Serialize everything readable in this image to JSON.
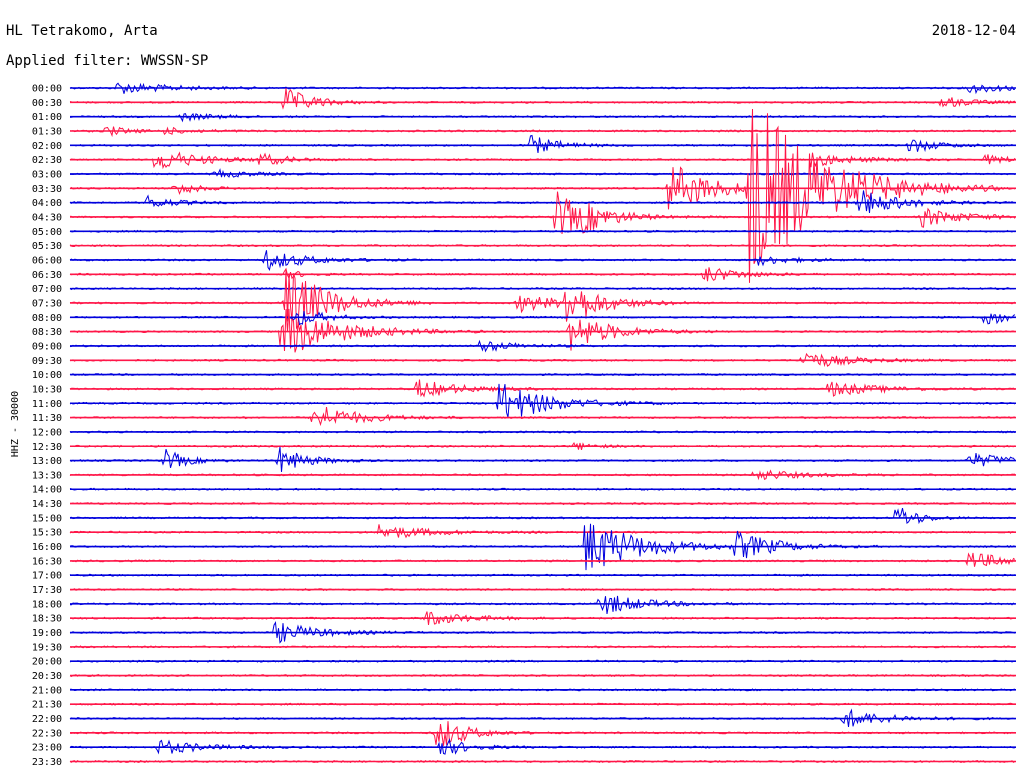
{
  "header": {
    "station": "HL Tetrakomo, Arta",
    "date": "2018-12-04",
    "filter": "Applied filter: WWSSN-SP"
  },
  "chart_data": {
    "type": "line",
    "title": "HL Tetrakomo, Arta",
    "ylabel": "HHZ - 30000",
    "trace_colors": [
      "#0000dd",
      "#ff1648"
    ],
    "hours": [
      "00:00",
      "00:30",
      "01:00",
      "01:30",
      "02:00",
      "02:30",
      "03:00",
      "03:30",
      "04:00",
      "04:30",
      "05:00",
      "05:30",
      "06:00",
      "06:30",
      "07:00",
      "07:30",
      "08:00",
      "08:30",
      "09:00",
      "09:30",
      "10:00",
      "10:30",
      "11:00",
      "11:30",
      "12:00",
      "12:30",
      "13:00",
      "13:30",
      "14:00",
      "14:30",
      "15:00",
      "15:30",
      "16:00",
      "16:30",
      "17:00",
      "17:30",
      "18:00",
      "18:30",
      "19:00",
      "19:30",
      "20:00",
      "20:30",
      "21:00",
      "21:30",
      "22:00",
      "22:30",
      "23:00",
      "23:30"
    ],
    "x_range_minutes": [
      0,
      30
    ],
    "events": [
      {
        "row": 0,
        "t": 1.5,
        "amp": 6,
        "dur": 1.5
      },
      {
        "row": 0,
        "t": 28.5,
        "amp": 5,
        "dur": 1.2
      },
      {
        "row": 1,
        "t": 6.8,
        "amp": 15,
        "dur": 0.8
      },
      {
        "row": 1,
        "t": 27.6,
        "amp": 7,
        "dur": 0.8
      },
      {
        "row": 2,
        "t": 3.5,
        "amp": 4,
        "dur": 1.0
      },
      {
        "row": 3,
        "t": 1.1,
        "amp": 6,
        "dur": 0.6
      },
      {
        "row": 3,
        "t": 3.0,
        "amp": 3,
        "dur": 1.0
      },
      {
        "row": 4,
        "t": 14.6,
        "amp": 10,
        "dur": 0.8
      },
      {
        "row": 4,
        "t": 26.6,
        "amp": 8,
        "dur": 0.8
      },
      {
        "row": 5,
        "t": 2.7,
        "amp": 12,
        "dur": 1.2
      },
      {
        "row": 5,
        "t": 6.0,
        "amp": 6,
        "dur": 0.8
      },
      {
        "row": 5,
        "t": 23.5,
        "amp": 7,
        "dur": 1.2
      },
      {
        "row": 5,
        "t": 29.0,
        "amp": 5,
        "dur": 0.8
      },
      {
        "row": 6,
        "t": 4.6,
        "amp": 4,
        "dur": 1.0
      },
      {
        "row": 7,
        "t": 3.3,
        "amp": 8,
        "dur": 0.6
      },
      {
        "row": 7,
        "t": 19.0,
        "amp": 28,
        "dur": 1.2
      },
      {
        "row": 7,
        "t": 21.5,
        "amp": 100,
        "dur": 2.0
      },
      {
        "row": 8,
        "t": 2.4,
        "amp": 7,
        "dur": 0.8
      },
      {
        "row": 8,
        "t": 25.0,
        "amp": 14,
        "dur": 1.2
      },
      {
        "row": 9,
        "t": 15.4,
        "amp": 28,
        "dur": 0.8
      },
      {
        "row": 9,
        "t": 16.2,
        "amp": 8,
        "dur": 1.2
      },
      {
        "row": 9,
        "t": 27.0,
        "amp": 10,
        "dur": 1.2
      },
      {
        "row": 12,
        "t": 6.2,
        "amp": 10,
        "dur": 1.2
      },
      {
        "row": 12,
        "t": 21.8,
        "amp": 5,
        "dur": 1.0
      },
      {
        "row": 13,
        "t": 6.8,
        "amp": 5,
        "dur": 0.5
      },
      {
        "row": 13,
        "t": 20.1,
        "amp": 9,
        "dur": 1.0
      },
      {
        "row": 15,
        "t": 6.8,
        "amp": 40,
        "dur": 1.2
      },
      {
        "row": 15,
        "t": 14.2,
        "amp": 9,
        "dur": 1.4
      },
      {
        "row": 15,
        "t": 15.6,
        "amp": 25,
        "dur": 1.0
      },
      {
        "row": 16,
        "t": 7.1,
        "amp": 10,
        "dur": 0.8
      },
      {
        "row": 16,
        "t": 29.0,
        "amp": 12,
        "dur": 0.5
      },
      {
        "row": 17,
        "t": 6.7,
        "amp": 28,
        "dur": 1.6
      },
      {
        "row": 17,
        "t": 15.8,
        "amp": 20,
        "dur": 1.2
      },
      {
        "row": 18,
        "t": 13.0,
        "amp": 6,
        "dur": 1.0
      },
      {
        "row": 19,
        "t": 23.2,
        "amp": 10,
        "dur": 1.2
      },
      {
        "row": 21,
        "t": 11.0,
        "amp": 10,
        "dur": 1.2
      },
      {
        "row": 21,
        "t": 24.0,
        "amp": 8,
        "dur": 1.4
      },
      {
        "row": 22,
        "t": 13.6,
        "amp": 22,
        "dur": 1.4
      },
      {
        "row": 23,
        "t": 7.7,
        "amp": 15,
        "dur": 1.2
      },
      {
        "row": 25,
        "t": 16.0,
        "amp": 4,
        "dur": 0.6
      },
      {
        "row": 26,
        "t": 3.0,
        "amp": 12,
        "dur": 0.6
      },
      {
        "row": 26,
        "t": 6.6,
        "amp": 14,
        "dur": 0.8
      },
      {
        "row": 26,
        "t": 28.5,
        "amp": 8,
        "dur": 1.2
      },
      {
        "row": 27,
        "t": 21.7,
        "amp": 6,
        "dur": 1.2
      },
      {
        "row": 30,
        "t": 26.2,
        "amp": 14,
        "dur": 0.6
      },
      {
        "row": 31,
        "t": 9.8,
        "amp": 8,
        "dur": 1.4
      },
      {
        "row": 32,
        "t": 16.3,
        "amp": 30,
        "dur": 1.6
      },
      {
        "row": 32,
        "t": 21.1,
        "amp": 14,
        "dur": 1.2
      },
      {
        "row": 33,
        "t": 28.5,
        "amp": 9,
        "dur": 1.2
      },
      {
        "row": 36,
        "t": 16.8,
        "amp": 12,
        "dur": 1.2
      },
      {
        "row": 37,
        "t": 11.2,
        "amp": 8,
        "dur": 1.2
      },
      {
        "row": 38,
        "t": 6.5,
        "amp": 11,
        "dur": 1.2
      },
      {
        "row": 44,
        "t": 24.5,
        "amp": 10,
        "dur": 1.2
      },
      {
        "row": 45,
        "t": 11.6,
        "amp": 20,
        "dur": 0.8
      },
      {
        "row": 46,
        "t": 2.8,
        "amp": 8,
        "dur": 1.2
      },
      {
        "row": 46,
        "t": 11.7,
        "amp": 10,
        "dur": 0.8
      }
    ]
  }
}
